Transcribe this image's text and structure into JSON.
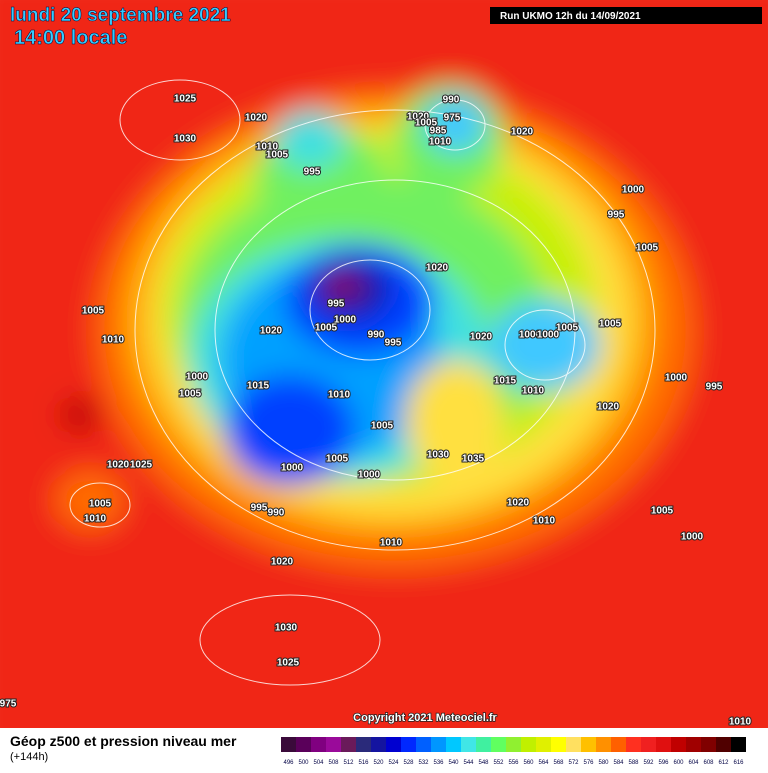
{
  "header": {
    "date": "lundi 20 septembre 2021",
    "time": "14:00 locale",
    "run": "Run UKMO 12h du 14/09/2021"
  },
  "isobar_labels": [
    1025,
    1030,
    1020,
    1010,
    1005,
    995,
    990,
    975,
    1020,
    1005,
    985,
    1010,
    1020,
    1000,
    995,
    1005,
    1020,
    995,
    1000,
    1005,
    990,
    995,
    1020,
    1005,
    1010,
    1000,
    1005,
    1015,
    1010,
    1020,
    1000,
    1005,
    1005,
    1000,
    1015,
    1010,
    1000,
    995,
    1020,
    1005,
    1005,
    1000,
    1000,
    1030,
    1035,
    1020,
    1025,
    1005,
    1010,
    995,
    990,
    1020,
    1010,
    1005,
    1000,
    1010,
    1020,
    1030,
    1025,
    1010,
    975
  ],
  "copyright": "Copyright 2021 Meteociel.fr",
  "legend": {
    "title": "Géop z500 et pression niveau mer",
    "lead": "(+144h)",
    "scale": [
      {
        "value": 496,
        "color": "#3a0a3a"
      },
      {
        "value": 500,
        "color": "#5a005a"
      },
      {
        "value": 504,
        "color": "#800080"
      },
      {
        "value": 508,
        "color": "#9a0a9a"
      },
      {
        "value": 512,
        "color": "#6a1a5a"
      },
      {
        "value": 516,
        "color": "#2a2a7a"
      },
      {
        "value": 520,
        "color": "#1414a0"
      },
      {
        "value": 524,
        "color": "#0000d0"
      },
      {
        "value": 528,
        "color": "#0028ff"
      },
      {
        "value": 532,
        "color": "#0060ff"
      },
      {
        "value": 536,
        "color": "#0096ff"
      },
      {
        "value": 540,
        "color": "#00c8ff"
      },
      {
        "value": 544,
        "color": "#40e6e6"
      },
      {
        "value": 548,
        "color": "#40f0a0"
      },
      {
        "value": 552,
        "color": "#60ff60"
      },
      {
        "value": 556,
        "color": "#90f030"
      },
      {
        "value": 560,
        "color": "#c0f000"
      },
      {
        "value": 564,
        "color": "#e0f000"
      },
      {
        "value": 568,
        "color": "#ffff00"
      },
      {
        "value": 572,
        "color": "#ffe060"
      },
      {
        "value": 576,
        "color": "#ffc000"
      },
      {
        "value": 580,
        "color": "#ff9000"
      },
      {
        "value": 584,
        "color": "#ff6000"
      },
      {
        "value": 588,
        "color": "#ff3020"
      },
      {
        "value": 592,
        "color": "#f02020"
      },
      {
        "value": 596,
        "color": "#e01010"
      },
      {
        "value": 600,
        "color": "#c00000"
      },
      {
        "value": 604,
        "color": "#a00000"
      },
      {
        "value": 608,
        "color": "#800000"
      },
      {
        "value": 612,
        "color": "#500000"
      },
      {
        "value": 616,
        "color": "#000000"
      }
    ]
  }
}
